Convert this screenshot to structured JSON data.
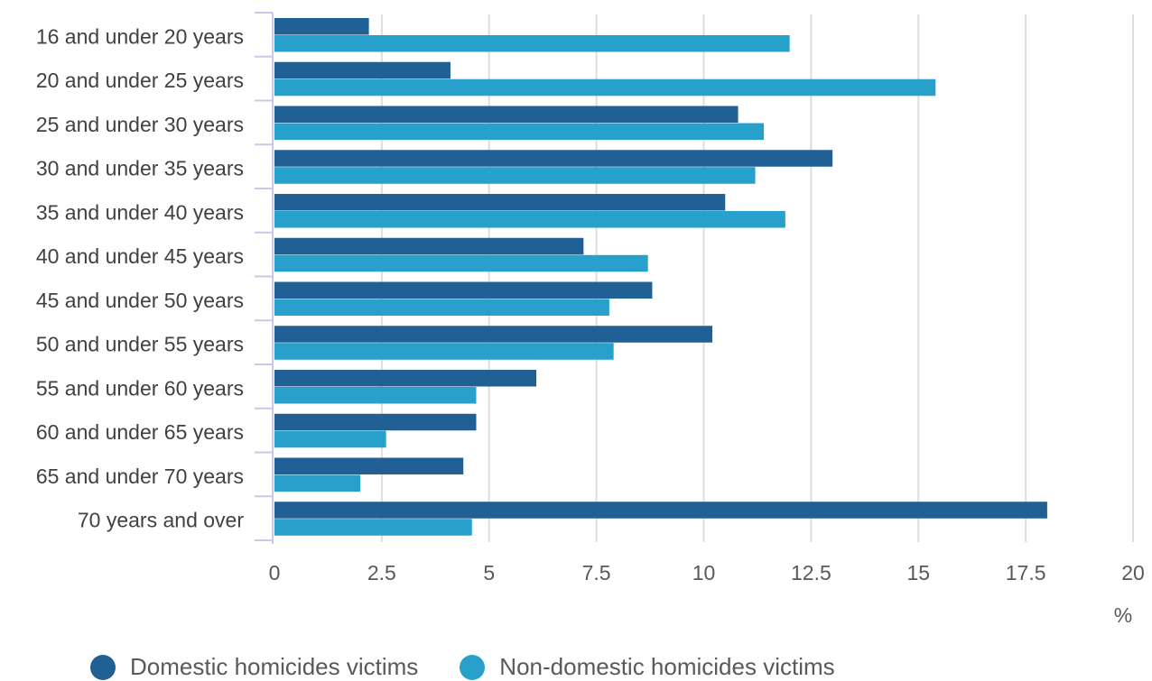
{
  "chart_data": {
    "type": "bar",
    "orientation": "horizontal",
    "categories": [
      "16 and under 20 years",
      "20 and under 25 years",
      "25 and under 30 years",
      "30 and under 35 years",
      "35 and under 40 years",
      "40 and under 45 years",
      "45 and under 50 years",
      "50 and under 55 years",
      "55 and under 60 years",
      "60 and under 65 years",
      "65 and under 70 years",
      "70 years and over"
    ],
    "series": [
      {
        "name": "Domestic homicides victims",
        "color": "#206095",
        "values": [
          2.2,
          4.1,
          10.8,
          13.0,
          10.5,
          7.2,
          8.8,
          10.2,
          6.1,
          4.7,
          4.4,
          18.0
        ]
      },
      {
        "name": "Non-domestic homicides victims",
        "color": "#27a0cc",
        "values": [
          12.0,
          15.4,
          11.4,
          11.2,
          11.9,
          8.7,
          7.8,
          7.9,
          4.7,
          2.6,
          2.0,
          4.6
        ]
      }
    ],
    "xlim": [
      0,
      20
    ],
    "xticks": [
      "0",
      "2.5",
      "5",
      "7.5",
      "10",
      "12.5",
      "15",
      "17.5",
      "20"
    ],
    "xunit": "%",
    "grid": true,
    "legend_position": "bottom"
  }
}
